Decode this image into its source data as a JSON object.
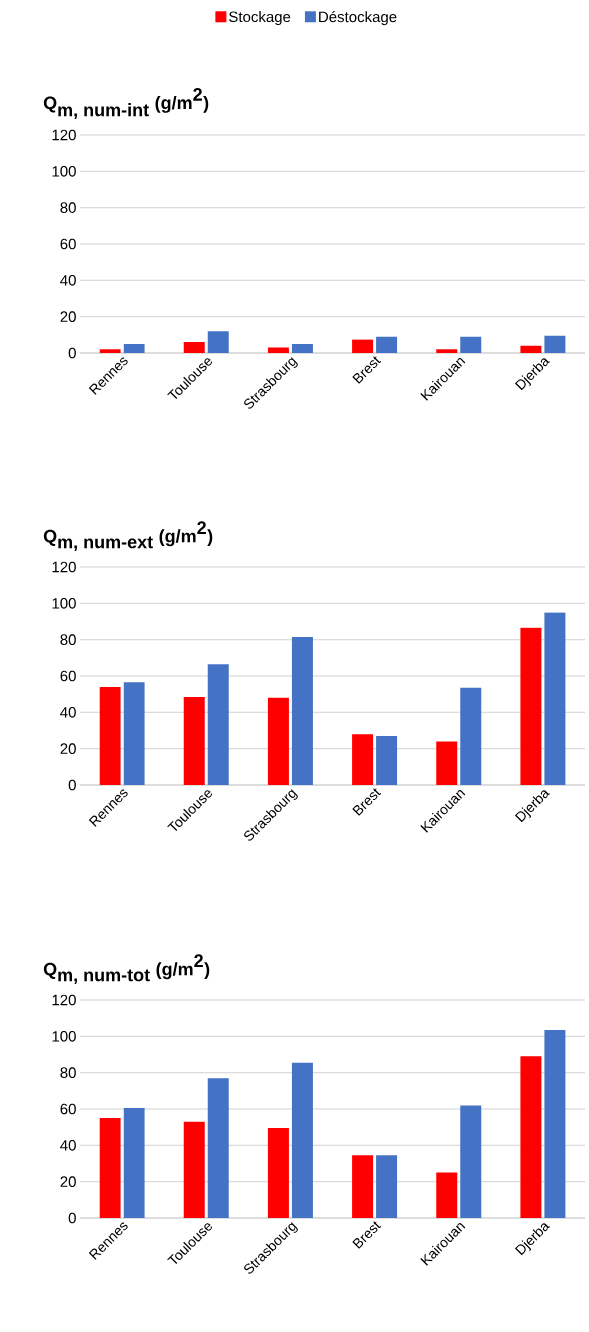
{
  "chart_data": [
    {
      "type": "bar",
      "title": "\\textbf{Q}_{\\textbf{m, num-int}}\\textbf{ (g/m}^{\\textbf{2}}\\textbf{)}",
      "categories": [
        "Rennes",
        "Toulouse",
        "Strasbourg",
        "Brest",
        "Kairouan",
        "Djerba"
      ],
      "series": [
        {
          "name": "Stockage",
          "color": "#ff0000",
          "values": [
            2,
            6,
            3,
            7.5,
            2,
            4
          ]
        },
        {
          "name": "Déstockage",
          "color": "#4472c4",
          "values": [
            5,
            12,
            5,
            9,
            9,
            9.5
          ]
        }
      ],
      "ylim": [
        0,
        120
      ],
      "yticks": [
        0,
        20,
        40,
        60,
        80,
        100,
        120
      ],
      "grid": "y",
      "legend": "top"
    },
    {
      "type": "bar",
      "title": "\\textbf{Q}_{\\textbf{m, num-ext}}\\textbf{ (g/m}^{\\textbf{2}}\\textbf{)}",
      "categories": [
        "Rennes",
        "Toulouse",
        "Strasbourg",
        "Brest",
        "Kairouan",
        "Djerba"
      ],
      "series": [
        {
          "color": "#ff0000",
          "values": [
            54,
            48.5,
            48,
            28,
            24,
            86.5
          ]
        },
        {
          "color": "#4472c4",
          "values": [
            56.5,
            66.5,
            81.5,
            27,
            53.5,
            95
          ]
        }
      ],
      "ylim": [
        0,
        120
      ],
      "yticks": [
        0,
        20,
        40,
        60,
        80,
        100,
        120
      ],
      "grid": "y"
    },
    {
      "type": "bar",
      "title": "\\textbf{Q}_{\\textbf{m, num-tot}}\\textbf{ (g/m}^{\\textbf{2}}\\textbf{)}",
      "categories": [
        "Rennes",
        "Toulouse",
        "Strasbourg",
        "Brest",
        "Kairouan",
        "Djerba"
      ],
      "series": [
        {
          "color": "#ff0000",
          "values": [
            55,
            53,
            49.5,
            34.5,
            25,
            89
          ]
        },
        {
          "color": "#4472c4",
          "values": [
            60.5,
            77,
            85.5,
            34.5,
            62,
            103.5
          ]
        }
      ],
      "ylim": [
        0,
        120
      ],
      "yticks": [
        0,
        20,
        40,
        60,
        80,
        100,
        120
      ],
      "grid": "y"
    }
  ]
}
